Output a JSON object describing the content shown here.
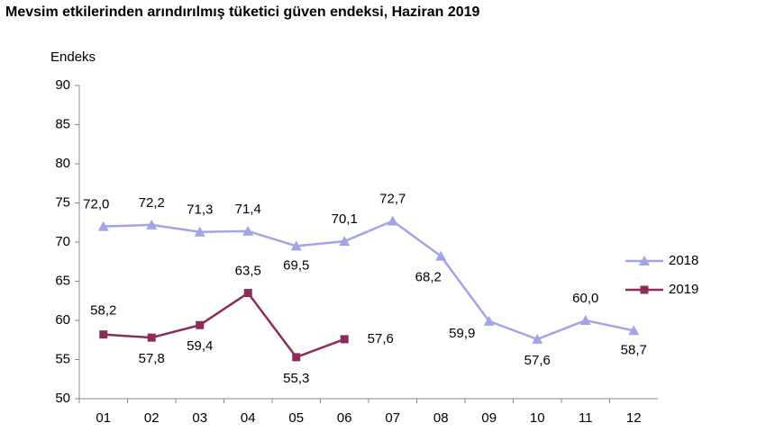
{
  "chart_data": {
    "type": "line",
    "title": "Mevsim etkilerinden arındırılmış tüketici güven endeksi, Haziran 2019",
    "y_label": "Endeks",
    "categories": [
      "01",
      "02",
      "03",
      "04",
      "05",
      "06",
      "07",
      "08",
      "09",
      "10",
      "11",
      "12"
    ],
    "series": [
      {
        "name": "2018",
        "color": "#a3a3e8",
        "marker": "triangle",
        "values": [
          72.0,
          72.2,
          71.3,
          71.4,
          69.5,
          70.1,
          72.7,
          68.2,
          59.9,
          57.6,
          60.0,
          58.7
        ],
        "value_labels": [
          "72,0",
          "72,2",
          "71,3",
          "71,4",
          "69,5",
          "70,1",
          "72,7",
          "68,2",
          "59,9",
          "57,6",
          "60,0",
          "58,7"
        ]
      },
      {
        "name": "2019",
        "color": "#8c2c5c",
        "marker": "square",
        "values": [
          58.2,
          57.8,
          59.4,
          63.5,
          55.3,
          57.6,
          null,
          null,
          null,
          null,
          null,
          null
        ],
        "value_labels": [
          "58,2",
          "57,8",
          "59,4",
          "63,5",
          "55,3",
          "57,6",
          null,
          null,
          null,
          null,
          null,
          null
        ]
      }
    ],
    "ylim": [
      50,
      90
    ],
    "yticks": [
      50,
      55,
      60,
      65,
      70,
      75,
      80,
      85,
      90
    ],
    "grid": false,
    "legend": "right"
  }
}
